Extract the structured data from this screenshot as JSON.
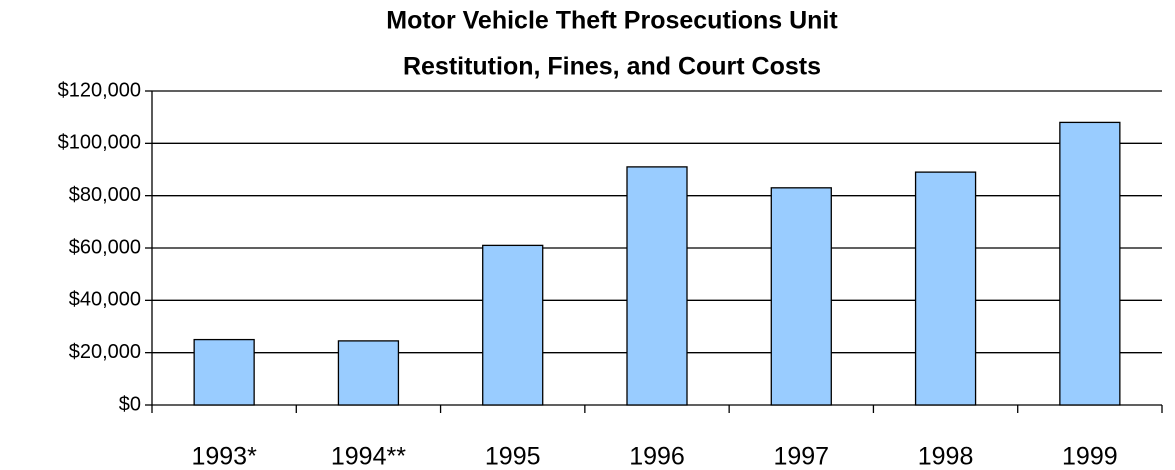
{
  "chart_data": {
    "type": "bar",
    "title": [
      "Motor Vehicle Theft Prosecutions Unit",
      "Restitution, Fines, and Court Costs"
    ],
    "categories": [
      "1993*",
      "1994**",
      "1995",
      "1996",
      "1997",
      "1998",
      "1999"
    ],
    "values": [
      25000,
      24500,
      61000,
      91000,
      83000,
      89000,
      108000
    ],
    "color": "#99ccff",
    "ylim": [
      0,
      120000
    ],
    "yticks": [
      {
        "value": 0,
        "label": "$0"
      },
      {
        "value": 20000,
        "label": "$20,000"
      },
      {
        "value": 40000,
        "label": "$40,000"
      },
      {
        "value": 60000,
        "label": "$60,000"
      },
      {
        "value": 80000,
        "label": "$80,000"
      },
      {
        "value": 100000,
        "label": "$100,000"
      },
      {
        "value": 120000,
        "label": "$120,000"
      }
    ],
    "grid": true
  }
}
